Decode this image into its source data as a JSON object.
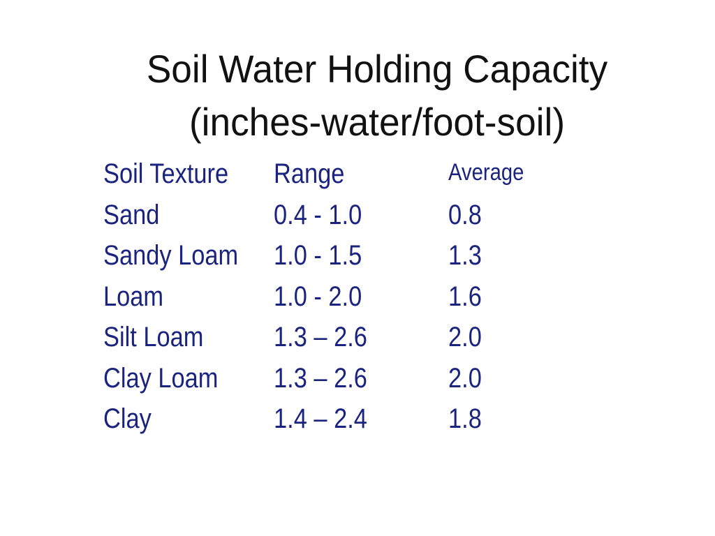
{
  "slide": {
    "title_line1": "Soil Water Holding Capacity",
    "title_line2": "(inches-water/foot-soil)",
    "text_color": "#1a237e",
    "title_color": "#111111"
  },
  "table": {
    "headers": [
      "Soil Texture",
      "Range",
      "Average"
    ],
    "rows": [
      [
        "Sand",
        "0.4 - 1.0",
        "0.8"
      ],
      [
        "Sandy Loam",
        "1.0 - 1.5",
        "1.3"
      ],
      [
        "Loam",
        "1.0 - 2.0",
        "1.6"
      ],
      [
        "Silt Loam",
        "1.3 – 2.6",
        "2.0"
      ],
      [
        "Clay Loam",
        "1.3 – 2.6",
        "2.0"
      ],
      [
        "Clay",
        "1.4 – 2.4",
        "1.8"
      ]
    ]
  }
}
